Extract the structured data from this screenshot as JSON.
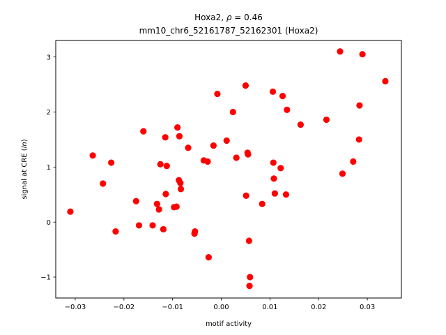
{
  "chart_data": {
    "type": "scatter",
    "title_prefix": "Hoxa2, ",
    "title_rho_symbol": "ρ",
    "title_rho_value": " = 0.46",
    "subtitle": "mm10_chr6_52161787_52162301 (Hoxa2)",
    "xlabel": "motif activity",
    "ylabel_prefix": "signal at CRE (",
    "ylabel_italic": "ln",
    "ylabel_suffix": ")",
    "xlim": [
      -0.034,
      0.037
    ],
    "ylim": [
      -1.38,
      3.3
    ],
    "x_ticks": [
      -0.03,
      -0.02,
      -0.01,
      0.0,
      0.01,
      0.02,
      0.03
    ],
    "x_tick_labels": [
      "−0.03",
      "−0.02",
      "−0.01",
      "0.00",
      "0.01",
      "0.02",
      "0.03"
    ],
    "y_ticks": [
      -1,
      0,
      1,
      2,
      3
    ],
    "y_tick_labels": [
      "−1",
      "0",
      "1",
      "2",
      "3"
    ],
    "grid": false,
    "legend": "none",
    "marker_color": "#ff0000",
    "points": [
      {
        "x": -0.031,
        "y": 0.19
      },
      {
        "x": -0.0264,
        "y": 1.21
      },
      {
        "x": -0.0243,
        "y": 0.7
      },
      {
        "x": -0.0226,
        "y": 1.08
      },
      {
        "x": -0.0217,
        "y": -0.17
      },
      {
        "x": -0.0175,
        "y": 0.38
      },
      {
        "x": -0.0169,
        "y": -0.06
      },
      {
        "x": -0.016,
        "y": 1.65
      },
      {
        "x": -0.0141,
        "y": -0.06
      },
      {
        "x": -0.0132,
        "y": 0.33
      },
      {
        "x": -0.0128,
        "y": 0.23
      },
      {
        "x": -0.0125,
        "y": 1.05
      },
      {
        "x": -0.0119,
        "y": -0.13
      },
      {
        "x": -0.0115,
        "y": 1.54
      },
      {
        "x": -0.0114,
        "y": 0.51
      },
      {
        "x": -0.0112,
        "y": 1.02
      },
      {
        "x": -0.0097,
        "y": 0.27
      },
      {
        "x": -0.0092,
        "y": 0.28
      },
      {
        "x": -0.009,
        "y": 1.72
      },
      {
        "x": -0.0087,
        "y": 0.76
      },
      {
        "x": -0.0086,
        "y": 1.56
      },
      {
        "x": -0.0084,
        "y": 0.71
      },
      {
        "x": -0.0083,
        "y": 0.6
      },
      {
        "x": -0.0068,
        "y": 1.35
      },
      {
        "x": -0.0055,
        "y": -0.21
      },
      {
        "x": -0.0054,
        "y": -0.17
      },
      {
        "x": -0.0036,
        "y": 1.12
      },
      {
        "x": -0.0028,
        "y": 1.1
      },
      {
        "x": -0.0026,
        "y": -0.64
      },
      {
        "x": -0.0016,
        "y": 1.39
      },
      {
        "x": -0.0008,
        "y": 2.33
      },
      {
        "x": 0.0011,
        "y": 1.48
      },
      {
        "x": 0.0024,
        "y": 2.0
      },
      {
        "x": 0.0031,
        "y": 1.17
      },
      {
        "x": 0.005,
        "y": 2.48
      },
      {
        "x": 0.0051,
        "y": 0.48
      },
      {
        "x": 0.0054,
        "y": 1.26
      },
      {
        "x": 0.0055,
        "y": 1.23
      },
      {
        "x": 0.0057,
        "y": -0.34
      },
      {
        "x": 0.0059,
        "y": -1.0
      },
      {
        "x": 0.0058,
        "y": -1.16
      },
      {
        "x": 0.0084,
        "y": 0.33
      },
      {
        "x": 0.0106,
        "y": 2.37
      },
      {
        "x": 0.0107,
        "y": 1.08
      },
      {
        "x": 0.0108,
        "y": 0.79
      },
      {
        "x": 0.011,
        "y": 0.52
      },
      {
        "x": 0.0122,
        "y": 0.98
      },
      {
        "x": 0.0126,
        "y": 2.29
      },
      {
        "x": 0.0133,
        "y": 0.5
      },
      {
        "x": 0.0135,
        "y": 2.04
      },
      {
        "x": 0.0163,
        "y": 1.77
      },
      {
        "x": 0.0216,
        "y": 1.86
      },
      {
        "x": 0.0244,
        "y": 3.1
      },
      {
        "x": 0.0249,
        "y": 0.88
      },
      {
        "x": 0.0271,
        "y": 1.1
      },
      {
        "x": 0.0283,
        "y": 1.5
      },
      {
        "x": 0.0284,
        "y": 2.12
      },
      {
        "x": 0.029,
        "y": 3.05
      },
      {
        "x": 0.0337,
        "y": 2.56
      }
    ]
  }
}
